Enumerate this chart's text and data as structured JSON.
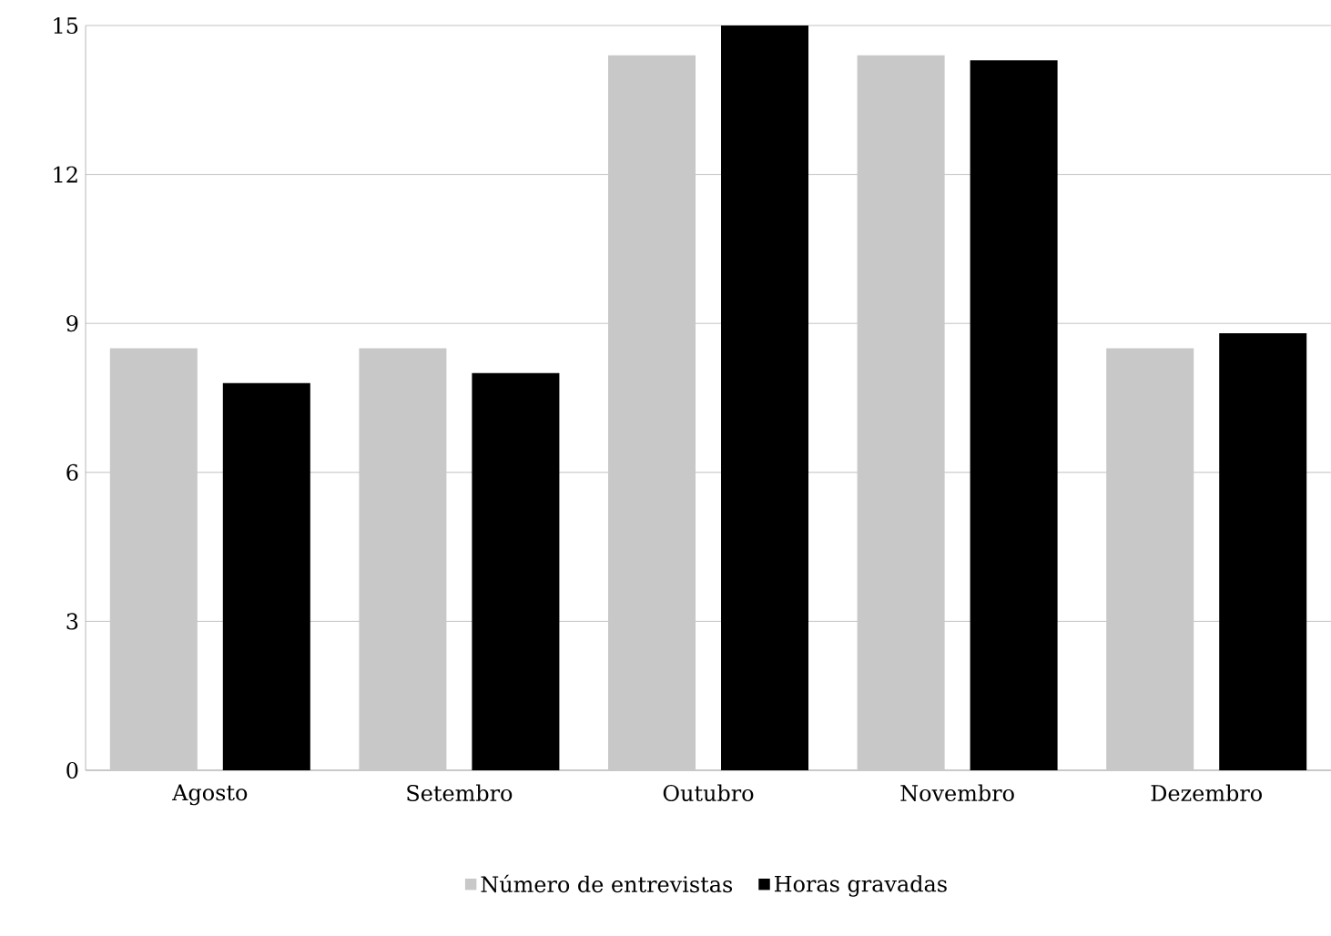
{
  "chart_data": {
    "type": "bar",
    "categories": [
      "Agosto",
      "Setembro",
      "Outubro",
      "Novembro",
      "Dezembro"
    ],
    "series": [
      {
        "name": "Número de entrevistas",
        "color": "#c8c8c8",
        "values": [
          8.5,
          8.5,
          14.4,
          14.4,
          8.5
        ]
      },
      {
        "name": "Horas gravadas",
        "color": "#000000",
        "values": [
          7.8,
          8.0,
          15.0,
          14.3,
          8.8
        ]
      }
    ],
    "ylim": [
      0,
      15
    ],
    "yticks": [
      0,
      3,
      6,
      9,
      12,
      15
    ],
    "grid": "y",
    "legend": "bottom"
  }
}
